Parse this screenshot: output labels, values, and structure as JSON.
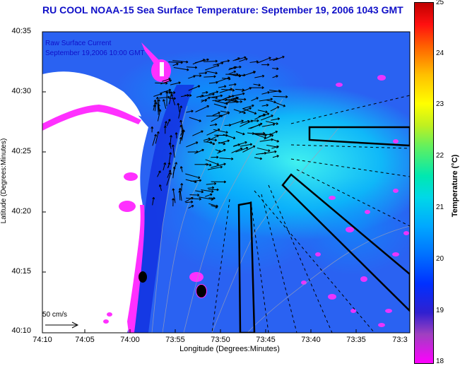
{
  "title": "RU COOL  NOAA-15  Sea Surface Temperature:  September 19, 2006 1043 GMT",
  "axes": {
    "ylabel": "Latitude (Degrees:Minutes)",
    "xlabel": "Longitude (Degrees:Minutes)",
    "yticks": [
      "40:35",
      "40:30",
      "40:25",
      "40:20",
      "40:15",
      "40:10"
    ],
    "xticks": [
      "74:10",
      "74:05",
      "74:00",
      "73:55",
      "73:50",
      "73:45",
      "73:40",
      "73:35",
      "73:3"
    ]
  },
  "legend": {
    "line1": "Raw Surface Current",
    "line2": "September 19,2006 10:00 GMT",
    "scale_label": "50 cm/s"
  },
  "colorbar": {
    "label": "Temperature (°C)",
    "ticks": [
      "25",
      "24",
      "23",
      "22",
      "21",
      "20",
      "19",
      "18"
    ],
    "range": [
      18,
      25
    ]
  },
  "colors": {
    "land": "#ffffff",
    "ocean_base": "#2a5cf0",
    "warm_patch": "#00d8f0",
    "cold_patch": "#ff30ff",
    "title": "#1010c8"
  }
}
